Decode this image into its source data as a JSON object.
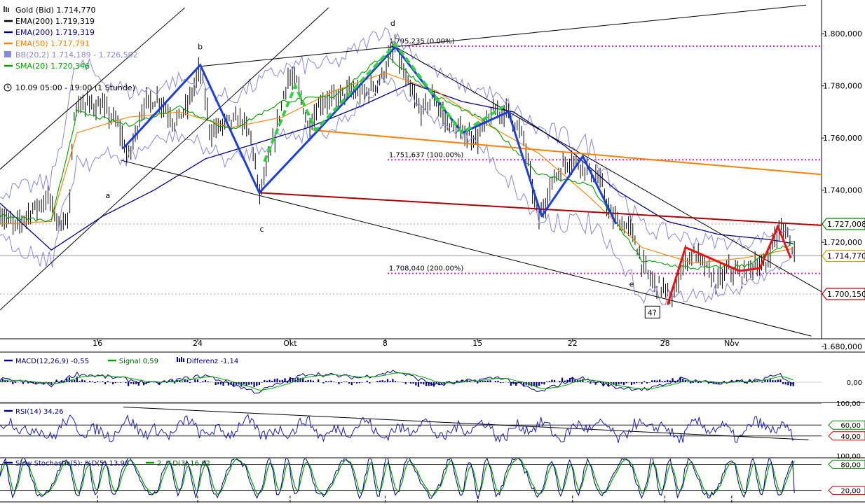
{
  "chart_data": {
    "type": "line",
    "x_tick_labels": [
      "16",
      "24",
      "Okt",
      "8",
      "15",
      "22",
      "28",
      "Nov"
    ],
    "main": {
      "ylim": [
        1680,
        1810
      ],
      "y_ticks": [
        1680,
        1700,
        1720,
        1740,
        1760,
        1780,
        1800
      ],
      "y_tick_labels": [
        "1.680,000",
        "1.700,000",
        "1.720,000",
        "1.740,000",
        "1.760,000",
        "1.780,000",
        "1.800,000"
      ],
      "legend": [
        {
          "label": "Gold (Bid) 1.714,770",
          "color": "#000000",
          "icon": "ohlc-bars-icon"
        },
        {
          "label": "EMA(200) 1.719,319",
          "color": "#000000",
          "icon": "line-swatch"
        },
        {
          "label": "EMA(200) 1.719,319",
          "color": "#000080",
          "icon": "line-swatch"
        },
        {
          "label": "EMA(50) 1.717,791",
          "color": "#ff8000",
          "icon": "line-swatch"
        },
        {
          "label": "BB(20,2) 1.714,189 - 1.726,502",
          "color": "#8888dd",
          "icon": "band-swatch"
        },
        {
          "label": "SMA(20) 1.720,346",
          "color": "#00a000",
          "icon": "line-swatch"
        }
      ],
      "period_label": "10.09 05:00 - 19:00 (1 Stunde)",
      "value_tags": [
        {
          "label": "1.727,008",
          "value": 1727.008,
          "color": "#008000"
        },
        {
          "label": "1.714,770",
          "value": 1714.77,
          "color": "#c8a000"
        },
        {
          "label": "1.700,150",
          "value": 1700.15,
          "color": "#c00000"
        }
      ],
      "fib_levels": [
        {
          "label": "1.795,235 (0.00%)",
          "value": 1795.235
        },
        {
          "label": "1.751,637 (100.00%)",
          "value": 1751.637
        },
        {
          "label": "1.708,040 (200.00%)",
          "value": 1708.04
        }
      ],
      "wave_labels": [
        {
          "text": "a",
          "x": 4.2,
          "y": 1737
        },
        {
          "text": "b",
          "x": 7.8,
          "y": 1794
        },
        {
          "text": "c",
          "x": 10.2,
          "y": 1724
        },
        {
          "text": "d",
          "x": 15.3,
          "y": 1803
        },
        {
          "text": "e",
          "x": 24.6,
          "y": 1703
        },
        {
          "text": "4?",
          "x": 25.4,
          "y": 1692,
          "boxed": true
        }
      ],
      "price_anchors": [
        [
          0,
          1731
        ],
        [
          0.6,
          1726
        ],
        [
          1.2,
          1732
        ],
        [
          1.9,
          1737
        ],
        [
          2.3,
          1727
        ],
        [
          2.7,
          1730
        ],
        [
          2.9,
          1772
        ],
        [
          3.4,
          1773
        ],
        [
          4.0,
          1772
        ],
        [
          4.6,
          1765
        ],
        [
          5.0,
          1752
        ],
        [
          5.6,
          1773
        ],
        [
          6.2,
          1775
        ],
        [
          6.8,
          1766
        ],
        [
          7.3,
          1772
        ],
        [
          7.8,
          1787
        ],
        [
          8.2,
          1762
        ],
        [
          8.8,
          1766
        ],
        [
          9.4,
          1767
        ],
        [
          9.8,
          1760
        ],
        [
          10.1,
          1738
        ],
        [
          10.6,
          1756
        ],
        [
          11.2,
          1783
        ],
        [
          11.6,
          1781
        ],
        [
          12.0,
          1764
        ],
        [
          12.5,
          1774
        ],
        [
          13.0,
          1775
        ],
        [
          13.6,
          1778
        ],
        [
          14.2,
          1777
        ],
        [
          14.8,
          1782
        ],
        [
          15.4,
          1795
        ],
        [
          15.8,
          1782
        ],
        [
          16.4,
          1770
        ],
        [
          16.9,
          1776
        ],
        [
          17.4,
          1766
        ],
        [
          18.0,
          1762
        ],
        [
          18.6,
          1760
        ],
        [
          19.2,
          1770
        ],
        [
          19.8,
          1770
        ],
        [
          20.4,
          1760
        ],
        [
          20.8,
          1737
        ],
        [
          21.0,
          1729
        ],
        [
          21.6,
          1745
        ],
        [
          22.2,
          1752
        ],
        [
          22.8,
          1749
        ],
        [
          23.4,
          1743
        ],
        [
          23.8,
          1730
        ],
        [
          24.2,
          1727
        ],
        [
          24.6,
          1725
        ],
        [
          25.0,
          1712
        ],
        [
          25.4,
          1705
        ],
        [
          25.9,
          1702
        ],
        [
          26.2,
          1697
        ],
        [
          26.6,
          1712
        ],
        [
          27.0,
          1716
        ],
        [
          27.4,
          1712
        ],
        [
          27.9,
          1704
        ],
        [
          28.4,
          1710
        ],
        [
          28.9,
          1707
        ],
        [
          29.4,
          1712
        ],
        [
          29.8,
          1710
        ],
        [
          30.2,
          1723
        ],
        [
          30.6,
          1725
        ],
        [
          31.0,
          1715
        ]
      ],
      "ema200_anchors": [
        [
          0,
          1735
        ],
        [
          2,
          1717
        ],
        [
          4,
          1730
        ],
        [
          6,
          1740
        ],
        [
          8,
          1752
        ],
        [
          10,
          1758
        ],
        [
          12,
          1764
        ],
        [
          14,
          1772
        ],
        [
          16,
          1781
        ],
        [
          18,
          1774
        ],
        [
          20,
          1770
        ],
        [
          22,
          1757
        ],
        [
          24,
          1740
        ],
        [
          26,
          1728
        ],
        [
          28,
          1723
        ],
        [
          30,
          1721
        ],
        [
          31,
          1719.319
        ]
      ],
      "ema50_anchors": [
        [
          0,
          1727
        ],
        [
          2,
          1728
        ],
        [
          3,
          1762
        ],
        [
          5,
          1768
        ],
        [
          7,
          1770
        ],
        [
          9,
          1764
        ],
        [
          11,
          1768
        ],
        [
          13,
          1778
        ],
        [
          15,
          1785
        ],
        [
          17,
          1778
        ],
        [
          19,
          1765
        ],
        [
          21,
          1754
        ],
        [
          23,
          1737
        ],
        [
          25,
          1718
        ],
        [
          27,
          1712
        ],
        [
          29,
          1714
        ],
        [
          31,
          1717.791
        ]
      ],
      "sma20_anchors": [
        [
          0,
          1730
        ],
        [
          2,
          1728
        ],
        [
          3,
          1770
        ],
        [
          5,
          1765
        ],
        [
          7,
          1772
        ],
        [
          9,
          1763
        ],
        [
          11,
          1774
        ],
        [
          13,
          1776
        ],
        [
          15,
          1792
        ],
        [
          17,
          1776
        ],
        [
          19,
          1766
        ],
        [
          21,
          1746
        ],
        [
          23,
          1742
        ],
        [
          25,
          1713
        ],
        [
          27,
          1710
        ],
        [
          29,
          1711
        ],
        [
          31,
          1720.346
        ]
      ],
      "bb_width_anchors": [
        [
          0,
          18
        ],
        [
          3,
          36
        ],
        [
          6,
          20
        ],
        [
          9,
          24
        ],
        [
          12,
          26
        ],
        [
          15,
          20
        ],
        [
          18,
          18
        ],
        [
          21,
          34
        ],
        [
          24,
          28
        ],
        [
          27,
          22
        ],
        [
          31,
          12
        ]
      ],
      "blue_pattern": [
        [
          4.8,
          1756
        ],
        [
          7.8,
          1788
        ],
        [
          10.1,
          1739
        ],
        [
          12.3,
          1762
        ],
        [
          15.4,
          1795
        ],
        [
          18.0,
          1762
        ],
        [
          19.8,
          1770
        ],
        [
          21.1,
          1730
        ],
        [
          22.7,
          1753
        ],
        [
          24.0,
          1727
        ]
      ],
      "green_pattern": [
        [
          10.3,
          1751
        ],
        [
          11.5,
          1780
        ],
        [
          12.3,
          1763
        ],
        [
          15.4,
          1796
        ],
        [
          18.0,
          1762
        ],
        [
          19.6,
          1772
        ]
      ],
      "red_pattern": [
        [
          26.0,
          1696
        ],
        [
          26.7,
          1718
        ],
        [
          28.8,
          1709
        ],
        [
          29.6,
          1710
        ],
        [
          30.3,
          1726
        ],
        [
          30.8,
          1714
        ]
      ],
      "channel_lines": [
        {
          "p1": [
            0,
            1748
          ],
          "p2": [
            7.2,
            1810
          ],
          "color": "#000000"
        },
        {
          "p1": [
            0,
            1694
          ],
          "p2": [
            12.8,
            1810
          ],
          "color": "#000000"
        },
        {
          "p1": [
            7.8,
            1787.5
          ],
          "p2": [
            31.4,
            1811
          ],
          "color": "#000000"
        },
        {
          "p1": [
            4.7,
            1751.5
          ],
          "p2": [
            31.6,
            1684
          ],
          "color": "#000000"
        },
        {
          "p1": [
            15.4,
            1795
          ],
          "p2": [
            32,
            1701
          ],
          "color": "#000000"
        },
        {
          "p1": [
            12.2,
            1763
          ],
          "p2": [
            32,
            1746
          ],
          "color": "#ff8000"
        },
        {
          "p1": [
            10.1,
            1739
          ],
          "p2": [
            32,
            1726.5
          ],
          "color": "#aa0000"
        }
      ]
    },
    "macd": {
      "legend": [
        {
          "label": "MACD(12,26,9) -0,55",
          "color": "#000080"
        },
        {
          "label": "Signal 0,59",
          "color": "#00a000"
        },
        {
          "label": "Differenz -1,14",
          "color": "#000080",
          "icon": "histogram-icon"
        }
      ],
      "ylim": [
        -4,
        4
      ],
      "zero_label": "0,00",
      "macd_anchors": [
        [
          0,
          0.5
        ],
        [
          2,
          -0.5
        ],
        [
          3,
          1.5
        ],
        [
          4.5,
          0.8
        ],
        [
          6,
          -0.3
        ],
        [
          8,
          1.2
        ],
        [
          10,
          -1.8
        ],
        [
          12,
          1.6
        ],
        [
          14,
          0.8
        ],
        [
          15.4,
          2.0
        ],
        [
          17,
          -0.5
        ],
        [
          19.5,
          0.9
        ],
        [
          21,
          -1.8
        ],
        [
          22.5,
          0.9
        ],
        [
          24,
          -0.9
        ],
        [
          25.3,
          -1.3
        ],
        [
          26.5,
          0.6
        ],
        [
          28,
          -0.2
        ],
        [
          29.5,
          0.3
        ],
        [
          30.4,
          1.3
        ],
        [
          31,
          -0.55
        ]
      ]
    },
    "rsi": {
      "legend": [
        {
          "label": "RSI(14) 34,26",
          "color": "#000080"
        }
      ],
      "ylim": [
        0,
        100
      ],
      "y_tick_labels": [
        "100,00",
        "60,00",
        "40,00"
      ],
      "levels": [
        100,
        60,
        40
      ],
      "last": 34.26
    },
    "stochastic": {
      "legend": [
        {
          "label": "Slow Stochastic(5): %D(5) 13,98",
          "color": "#000080"
        },
        {
          "label": "2. %D(3) 16,82",
          "color": "#00a000"
        }
      ],
      "ylim": [
        0,
        100
      ],
      "y_tick_labels": [
        "100,00",
        "80,00",
        "20,00"
      ],
      "levels": [
        100,
        80,
        20
      ],
      "last": 13.98
    }
  }
}
